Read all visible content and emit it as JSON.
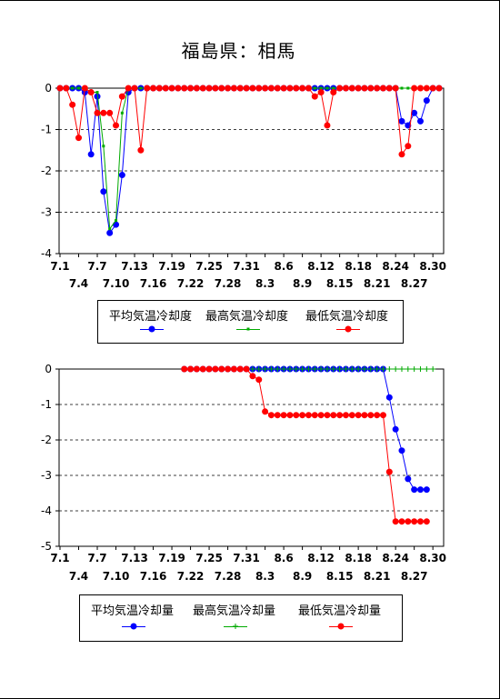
{
  "title": "福島県：相馬",
  "chart_data": [
    {
      "type": "line",
      "ylim": [
        -4,
        0
      ],
      "yticks": [
        "0",
        "-1",
        "-2",
        "-3",
        "-4"
      ],
      "x_count": 62,
      "xticks_row1": [
        "7.1",
        "7.7",
        "7.13",
        "7.19",
        "7.25",
        "7.31",
        "8.6",
        "8.12",
        "8.18",
        "8.24",
        "8.30"
      ],
      "xticks_row2": [
        "7.4",
        "7.10",
        "7.16",
        "7.22",
        "7.28",
        "8.3",
        "8.9",
        "8.15",
        "8.21",
        "8.27"
      ],
      "grid": "dashed horizontal",
      "legend": "bottom",
      "series": [
        {
          "name": "平均気温冷却度",
          "color": "#0000ff",
          "marker": "circle",
          "values": [
            0,
            0,
            0,
            0,
            -0.1,
            -1.6,
            -0.2,
            -2.5,
            -3.5,
            -3.3,
            -2.1,
            -0.1,
            0,
            0,
            0,
            0,
            0,
            0,
            0,
            0,
            0,
            0,
            0,
            0,
            0,
            0,
            0,
            0,
            0,
            0,
            0,
            0,
            0,
            0,
            0,
            0,
            0,
            0,
            0,
            0,
            0,
            0,
            0,
            0,
            0,
            0,
            0,
            0,
            0,
            0,
            0,
            0,
            0,
            0,
            0,
            -0.8,
            -0.9,
            -0.6,
            -0.8,
            -0.3,
            0,
            0
          ]
        },
        {
          "name": "最高気温冷却度",
          "color": "#00aa00",
          "marker": "square",
          "values": [
            0,
            0,
            0,
            0,
            0,
            -0.1,
            -0.1,
            -1.4,
            -3.4,
            -3.2,
            -0.6,
            0,
            0,
            0,
            0,
            0,
            0,
            0,
            0,
            0,
            0,
            0,
            0,
            0,
            0,
            0,
            0,
            0,
            0,
            0,
            0,
            0,
            0,
            0,
            0,
            0,
            0,
            0,
            0,
            0,
            0,
            0,
            0,
            0,
            0,
            0,
            0,
            0,
            0,
            0,
            0,
            0,
            0,
            0,
            0,
            0,
            0,
            0,
            0,
            0,
            0,
            0
          ]
        },
        {
          "name": "最低気温冷却度",
          "color": "#ff0000",
          "marker": "circle",
          "values": [
            0,
            0,
            -0.4,
            -1.2,
            0,
            -0.1,
            -0.6,
            -0.6,
            -0.6,
            -0.9,
            -0.2,
            0,
            0,
            -1.5,
            0,
            0,
            0,
            0,
            0,
            0,
            0,
            0,
            0,
            0,
            0,
            0,
            0,
            0,
            0,
            0,
            0,
            0,
            0,
            0,
            0,
            0,
            0,
            0,
            0,
            0,
            0,
            -0.2,
            -0.1,
            -0.9,
            -0.1,
            0,
            0,
            0,
            0,
            0,
            0,
            0,
            0,
            0,
            0,
            -1.6,
            -1.4,
            0,
            0,
            0,
            0,
            0
          ]
        }
      ]
    },
    {
      "type": "line",
      "ylim": [
        -5,
        0
      ],
      "yticks": [
        "0",
        "-1",
        "-2",
        "-3",
        "-4",
        "-5"
      ],
      "x_count": 62,
      "xticks_row1": [
        "7.1",
        "7.7",
        "7.13",
        "7.19",
        "7.25",
        "7.31",
        "8.6",
        "8.12",
        "8.18",
        "8.24",
        "8.30"
      ],
      "xticks_row2": [
        "7.4",
        "7.10",
        "7.16",
        "7.22",
        "7.28",
        "8.3",
        "8.9",
        "8.15",
        "8.21",
        "8.27"
      ],
      "grid": "dashed horizontal",
      "legend": "bottom",
      "series": [
        {
          "name": "平均気温冷却量",
          "color": "#0000ff",
          "marker": "circle",
          "values": [
            null,
            null,
            null,
            null,
            null,
            null,
            null,
            null,
            null,
            null,
            null,
            null,
            null,
            null,
            null,
            null,
            null,
            null,
            null,
            null,
            0,
            0,
            0,
            0,
            0,
            0,
            0,
            0,
            0,
            0,
            0,
            0,
            0,
            0,
            0,
            0,
            0,
            0,
            0,
            0,
            0,
            0,
            0,
            0,
            0,
            0,
            0,
            0,
            0,
            0,
            0,
            0,
            0,
            -0.8,
            -1.7,
            -2.3,
            -3.1,
            -3.4,
            -3.4,
            -3.4,
            null,
            null
          ]
        },
        {
          "name": "最高気温冷却量",
          "color": "#00aa00",
          "marker": "plus",
          "values": [
            null,
            null,
            null,
            null,
            null,
            null,
            null,
            null,
            null,
            null,
            null,
            null,
            null,
            null,
            null,
            null,
            null,
            null,
            null,
            null,
            0,
            0,
            0,
            0,
            0,
            0,
            0,
            0,
            0,
            0,
            0,
            0,
            0,
            0,
            0,
            0,
            0,
            0,
            0,
            0,
            0,
            0,
            0,
            0,
            0,
            0,
            0,
            0,
            0,
            0,
            0,
            0,
            0,
            0,
            0,
            0,
            0,
            0,
            0,
            0,
            0,
            null
          ]
        },
        {
          "name": "最低気温冷却量",
          "color": "#ff0000",
          "marker": "circle",
          "values": [
            null,
            null,
            null,
            null,
            null,
            null,
            null,
            null,
            null,
            null,
            null,
            null,
            null,
            null,
            null,
            null,
            null,
            null,
            null,
            null,
            0,
            0,
            0,
            0,
            0,
            0,
            0,
            0,
            0,
            0,
            0,
            -0.2,
            -0.3,
            -1.2,
            -1.3,
            -1.3,
            -1.3,
            -1.3,
            -1.3,
            -1.3,
            -1.3,
            -1.3,
            -1.3,
            -1.3,
            -1.3,
            -1.3,
            -1.3,
            -1.3,
            -1.3,
            -1.3,
            -1.3,
            -1.3,
            -1.3,
            -2.9,
            -4.3,
            -4.3,
            -4.3,
            -4.3,
            -4.3,
            -4.3,
            null,
            null
          ]
        }
      ]
    }
  ]
}
